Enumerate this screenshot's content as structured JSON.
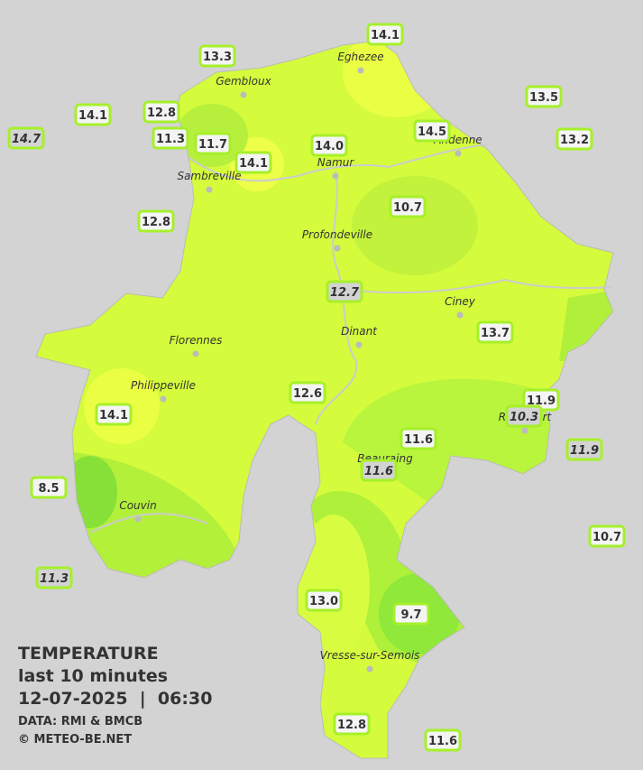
{
  "legend": {
    "title": "TEMPERATURE",
    "subtitle": "last 10 minutes",
    "datetime": "12-07-2025  |  06:30",
    "source": "DATA: RMI & BMCB",
    "credit": "© METEO-BE.NET"
  },
  "towns": [
    "Eghezee",
    "Gembloux",
    "Andenne",
    "Namur",
    "Sambreville",
    "Profondeville",
    "Ciney",
    "Dinant",
    "Florennes",
    "Philippeville",
    "Rochefort",
    "Beauraing",
    "Couvin",
    "Vresse-sur-Semois"
  ],
  "stations": [
    "14.1",
    "13.3",
    "13.5",
    "14.1",
    "12.8",
    "14.7",
    "11.3",
    "11.7",
    "14.1",
    "14.0",
    "14.5",
    "13.2",
    "10.7",
    "12.8",
    "12.7",
    "13.7",
    "12.6",
    "14.1",
    "11.9",
    "10.3",
    "11.6",
    "11.9",
    "11.6",
    "8.5",
    "10.7",
    "11.3",
    "13.0",
    "9.7",
    "12.8",
    "11.6"
  ]
}
